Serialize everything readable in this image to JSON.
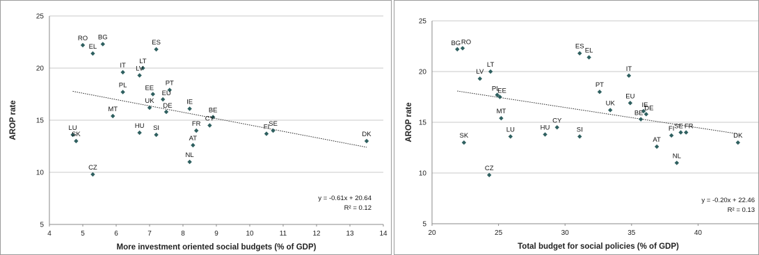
{
  "chart_data": [
    {
      "type": "scatter",
      "xlabel": "More investment oriented social budgets (% of GDP)",
      "ylabel": "AROP rate",
      "xlim": [
        4,
        14
      ],
      "ylim": [
        5,
        25
      ],
      "xticks": [
        4,
        5,
        6,
        7,
        8,
        9,
        10,
        11,
        12,
        13,
        14
      ],
      "yticks": [
        5,
        10,
        15,
        20,
        25
      ],
      "grid": "horizontal",
      "marker_color": "#2f6060",
      "trendline": {
        "slope": -0.61,
        "intercept": 20.64,
        "style": "dotted"
      },
      "equation": "y = -0.61x + 20.64",
      "r2": "R² = 0.12",
      "points": [
        {
          "label": "RO",
          "x": 5.0,
          "y": 22.2
        },
        {
          "label": "BG",
          "x": 5.6,
          "y": 22.3
        },
        {
          "label": "EL",
          "x": 5.3,
          "y": 21.4
        },
        {
          "label": "ES",
          "x": 7.2,
          "y": 21.8
        },
        {
          "label": "IT",
          "x": 6.2,
          "y": 19.6
        },
        {
          "label": "LT",
          "x": 6.8,
          "y": 20.0
        },
        {
          "label": "LV",
          "x": 6.7,
          "y": 19.3
        },
        {
          "label": "PL",
          "x": 6.2,
          "y": 17.7
        },
        {
          "label": "PT",
          "x": 7.6,
          "y": 17.9
        },
        {
          "label": "EE",
          "x": 7.1,
          "y": 17.5
        },
        {
          "label": "EU",
          "x": 7.4,
          "y": 17.0
        },
        {
          "label": "UK",
          "x": 7.0,
          "y": 16.2
        },
        {
          "label": "DE",
          "x": 7.5,
          "y": 15.8
        },
        {
          "label": "MT",
          "x": 5.9,
          "y": 15.4
        },
        {
          "label": "IE",
          "x": 8.2,
          "y": 16.1
        },
        {
          "label": "BE",
          "x": 8.9,
          "y": 15.3
        },
        {
          "label": "CY",
          "x": 8.8,
          "y": 14.5
        },
        {
          "label": "LU",
          "x": 4.7,
          "y": 13.6
        },
        {
          "label": "SK",
          "x": 4.8,
          "y": 13.0
        },
        {
          "label": "HU",
          "x": 6.7,
          "y": 13.8
        },
        {
          "label": "SI",
          "x": 7.2,
          "y": 13.6
        },
        {
          "label": "FR",
          "x": 8.4,
          "y": 14.0
        },
        {
          "label": "AT",
          "x": 8.3,
          "y": 12.6
        },
        {
          "label": "FI",
          "x": 10.5,
          "y": 13.7
        },
        {
          "label": "SE",
          "x": 10.7,
          "y": 14.0
        },
        {
          "label": "NL",
          "x": 8.2,
          "y": 11.0
        },
        {
          "label": "CZ",
          "x": 5.3,
          "y": 9.8
        },
        {
          "label": "DK",
          "x": 13.5,
          "y": 13.0
        }
      ]
    },
    {
      "type": "scatter",
      "xlabel": "Total budget for social policies (% of GDP)",
      "ylabel": "AROP rate",
      "xlim": [
        20,
        45
      ],
      "ylim": [
        5,
        25
      ],
      "xticks": [
        20,
        25,
        30,
        35,
        40,
        45
      ],
      "yticks": [
        5,
        10,
        15,
        20,
        25
      ],
      "grid": "horizontal",
      "marker_color": "#2f6060",
      "trendline": {
        "slope": -0.2,
        "intercept": 22.46,
        "style": "dotted"
      },
      "equation": "y = -0.20x + 22.46",
      "r2": "R² = 0.13",
      "points": [
        {
          "label": "BG",
          "x": 21.9,
          "y": 22.2
        },
        {
          "label": "RO",
          "x": 22.3,
          "y": 22.3
        },
        {
          "label": "ES",
          "x": 31.1,
          "y": 21.8
        },
        {
          "label": "EL",
          "x": 31.8,
          "y": 21.4
        },
        {
          "label": "LT",
          "x": 24.4,
          "y": 20.0
        },
        {
          "label": "IT",
          "x": 34.8,
          "y": 19.6
        },
        {
          "label": "LV",
          "x": 23.6,
          "y": 19.3
        },
        {
          "label": "PL",
          "x": 24.9,
          "y": 17.7
        },
        {
          "label": "EE",
          "x": 25.1,
          "y": 17.5
        },
        {
          "label": "PT",
          "x": 32.6,
          "y": 18.0
        },
        {
          "label": "EU",
          "x": 34.9,
          "y": 16.9
        },
        {
          "label": "IE",
          "x": 35.9,
          "y": 16.1
        },
        {
          "label": "UK",
          "x": 33.4,
          "y": 16.2
        },
        {
          "label": "DE",
          "x": 36.1,
          "y": 15.8
        },
        {
          "label": "BE",
          "x": 35.7,
          "y": 15.3
        },
        {
          "label": "MT",
          "x": 25.2,
          "y": 15.4
        },
        {
          "label": "CY",
          "x": 29.4,
          "y": 14.5
        },
        {
          "label": "SE",
          "x": 38.7,
          "y": 14.0
        },
        {
          "label": "FR",
          "x": 39.1,
          "y": 14.0
        },
        {
          "label": "FI",
          "x": 38.0,
          "y": 13.7
        },
        {
          "label": "SK",
          "x": 22.4,
          "y": 13.0
        },
        {
          "label": "LU",
          "x": 25.9,
          "y": 13.6
        },
        {
          "label": "HU",
          "x": 28.5,
          "y": 13.8
        },
        {
          "label": "SI",
          "x": 31.1,
          "y": 13.6
        },
        {
          "label": "AT",
          "x": 36.9,
          "y": 12.6
        },
        {
          "label": "NL",
          "x": 38.4,
          "y": 11.0
        },
        {
          "label": "DK",
          "x": 43.0,
          "y": 13.0
        },
        {
          "label": "CZ",
          "x": 24.3,
          "y": 9.8
        }
      ]
    }
  ]
}
